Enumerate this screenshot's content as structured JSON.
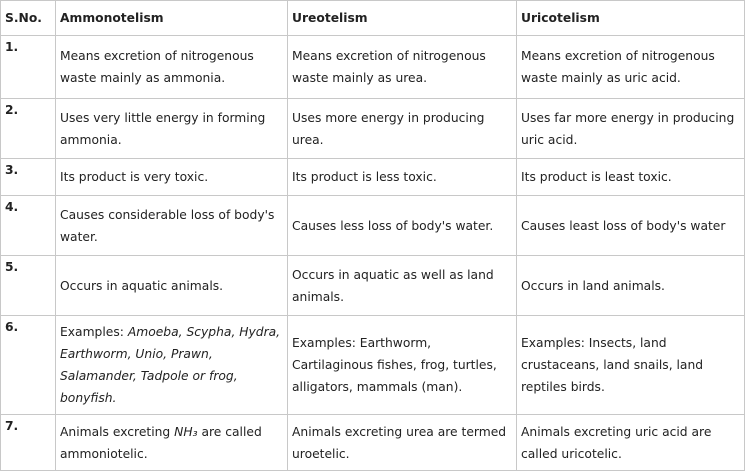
{
  "table": {
    "header": [
      "S.No.",
      "Ammonotelism",
      "Ureotelism",
      "Uricotelism"
    ],
    "rows": [
      [
        "1.",
        "Means excretion of nitrogenous waste mainly as ammonia.",
        "Means excretion of nitrogenous waste mainly as urea.",
        "Means excretion of nitrogenous waste mainly as uric acid."
      ],
      [
        "2.",
        "Uses very little energy in forming ammonia.",
        "Uses more energy in producing urea.",
        "Uses far more energy in producing uric acid."
      ],
      [
        "3.",
        "Its product is very toxic.",
        "Its product is less toxic.",
        "Its product is least toxic."
      ],
      [
        "4.",
        "Causes considerable loss of body's water.",
        "Causes less loss of body's water.",
        "Causes least loss of body's water"
      ],
      [
        "5.",
        "Occurs in aquatic animals.",
        "Occurs in aquatic as well as land animals.",
        "Occurs in land animals."
      ],
      [
        "6.",
        {
          "prefix": "Examples:",
          "italic": "Amoeba, Scypha, Hydra, Earthworm, Unio, Prawn, Salamander, Tadpole or frog, bonyfish."
        },
        "Examples: Earthworm, Cartilaginous fishes, frog, turtles, alligators, mammals (man).",
        "Examples: Insects, land crustaceans, land snails, land reptiles birds."
      ],
      [
        "7.",
        {
          "before": "Animals excreting",
          "formula": "NH₃",
          "after": "are called ammoniotelic."
        },
        "Animals excreting urea are termed uroetelic.",
        "Animals excreting uric acid are called uricotelic."
      ]
    ]
  }
}
